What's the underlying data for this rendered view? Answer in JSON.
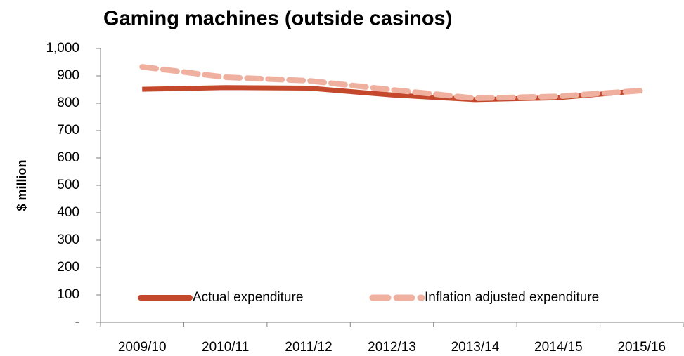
{
  "chart_data": {
    "type": "line",
    "title": "Gaming machines (outside casinos)",
    "y_label": "$ million",
    "categories": [
      "2009/10",
      "2010/11",
      "2011/12",
      "2012/13",
      "2013/14",
      "2014/15",
      "2015/16"
    ],
    "series": [
      {
        "name": "Actual expenditure",
        "color": "#c4482b",
        "dash": false,
        "values": [
          851,
          857,
          855,
          830,
          813,
          820,
          846
        ]
      },
      {
        "name": "Inflation adjusted expenditure",
        "color": "#f0b09f",
        "dash": true,
        "values": [
          933,
          895,
          882,
          849,
          818,
          825,
          846
        ]
      }
    ],
    "ylim": [
      0,
      1000
    ],
    "yticks": [
      {
        "value": 0,
        "label": "-"
      },
      100,
      200,
      300,
      400,
      500,
      600,
      700,
      800,
      900,
      {
        "value": 1000,
        "label": "1,000"
      }
    ],
    "legend": "bottom",
    "grid": false
  }
}
